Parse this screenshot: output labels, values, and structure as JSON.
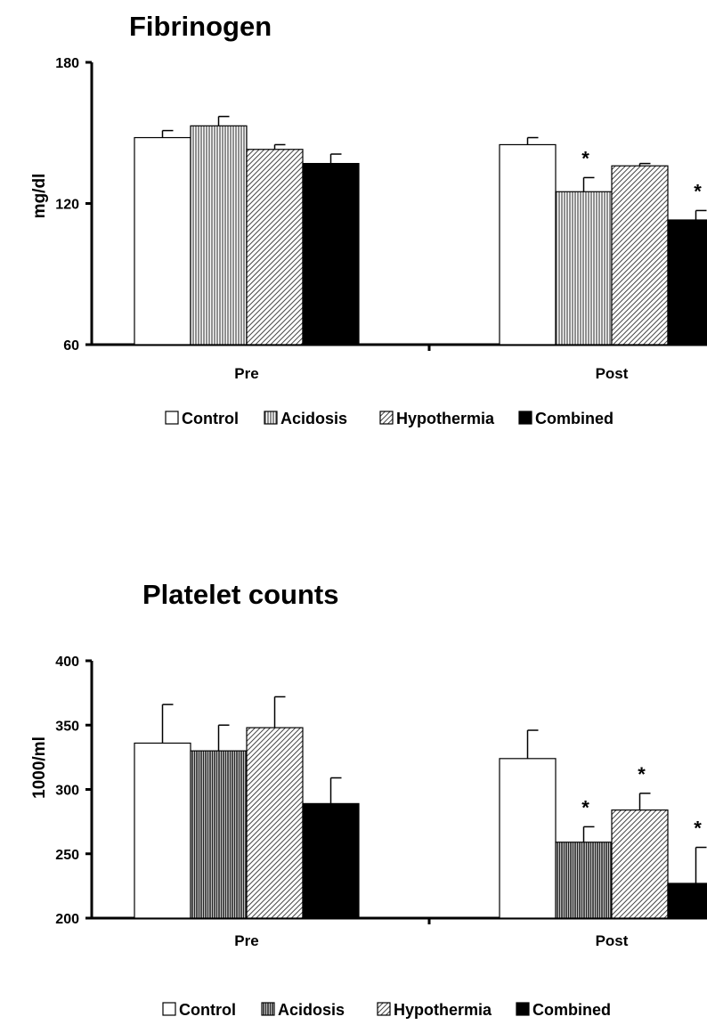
{
  "series_names": [
    "Control",
    "Acidosis",
    "Hypothermia",
    "Combined"
  ],
  "series_fill": [
    "white",
    "vlines",
    "diag",
    "black"
  ],
  "chart_data": [
    {
      "type": "bar",
      "title": "Fibrinogen",
      "ylabel": "mg/dl",
      "xlabel": "",
      "ylim": [
        60,
        180
      ],
      "yticks": [
        60,
        120,
        180
      ],
      "categories": [
        "Pre",
        "Post"
      ],
      "legend": "bottom",
      "grid": false,
      "series": [
        {
          "name": "Control",
          "values": [
            148,
            145
          ],
          "errors": [
            3,
            3
          ],
          "significant": [
            false,
            false
          ]
        },
        {
          "name": "Acidosis",
          "values": [
            153,
            125
          ],
          "errors": [
            4,
            6
          ],
          "significant": [
            false,
            true
          ]
        },
        {
          "name": "Hypothermia",
          "values": [
            143,
            136
          ],
          "errors": [
            2,
            1
          ],
          "significant": [
            false,
            false
          ]
        },
        {
          "name": "Combined",
          "values": [
            137,
            113
          ],
          "errors": [
            4,
            4
          ],
          "significant": [
            false,
            true
          ]
        }
      ],
      "significance_marker": "*"
    },
    {
      "type": "bar",
      "title": "Platelet counts",
      "ylabel": "1000/ml",
      "xlabel": "",
      "ylim": [
        200,
        400
      ],
      "yticks": [
        200,
        250,
        300,
        350,
        400
      ],
      "categories": [
        "Pre",
        "Post"
      ],
      "legend": "bottom",
      "grid": false,
      "series": [
        {
          "name": "Control",
          "values": [
            336,
            324
          ],
          "errors": [
            30,
            22
          ],
          "significant": [
            false,
            false
          ]
        },
        {
          "name": "Acidosis",
          "values": [
            330,
            259
          ],
          "errors": [
            20,
            12
          ],
          "significant": [
            false,
            true
          ]
        },
        {
          "name": "Hypothermia",
          "values": [
            348,
            284
          ],
          "errors": [
            24,
            13
          ],
          "significant": [
            false,
            true
          ]
        },
        {
          "name": "Combined",
          "values": [
            289,
            227
          ],
          "errors": [
            20,
            28
          ],
          "significant": [
            false,
            true
          ]
        }
      ],
      "significance_marker": "*"
    }
  ]
}
